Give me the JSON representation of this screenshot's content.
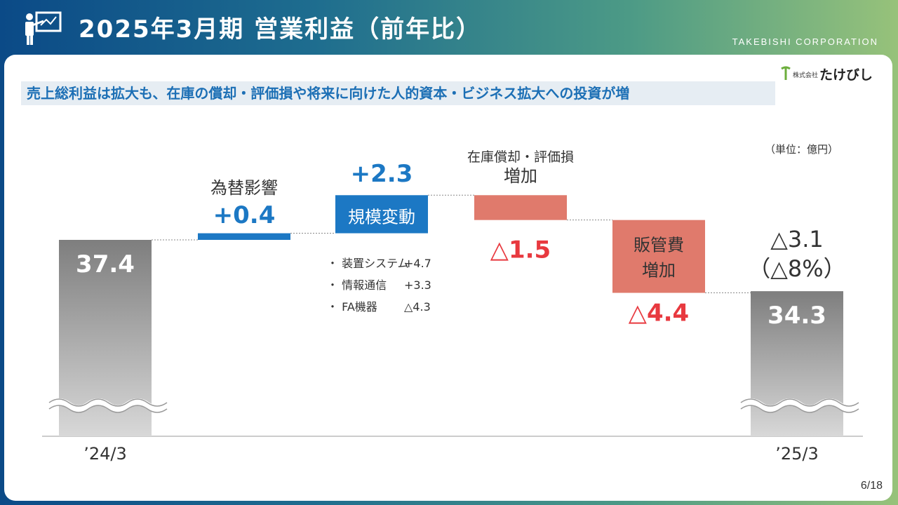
{
  "header": {
    "title": "2025年3月期 営業利益（前年比）",
    "company": "TAKEBISHI CORPORATION"
  },
  "subtitle": "売上総利益は拡大も、在庫の償却・評価損や将来に向けた人的資本・ビジネス拡大への投資が増",
  "logo_text": "株式会社たけびし",
  "unit_label": "（単位：億円）",
  "page_number": "6/18",
  "colors": {
    "positive": "#1c78c4",
    "negative": "#e07a6c",
    "negative_text": "#e8393f",
    "total": "#8a8a8a"
  },
  "chart_data": {
    "type": "bar",
    "subtype": "waterfall",
    "steps": [
      {
        "kind": "total",
        "category": "’24/3",
        "value": 37.4,
        "value_label": "37.4"
      },
      {
        "kind": "delta",
        "category": "為替影響",
        "value": 0.4,
        "value_label": "+0.4"
      },
      {
        "kind": "delta",
        "category": "規模変動",
        "value": 2.3,
        "value_label": "+2.3"
      },
      {
        "kind": "delta",
        "category": "在庫償却・評価損 増加",
        "category_lines": [
          "在庫償却・評価損",
          "増加"
        ],
        "value": -1.5,
        "value_label": "△1.5"
      },
      {
        "kind": "delta",
        "category": "販管費 増加",
        "category_lines": [
          "販管費",
          "増加"
        ],
        "value": -4.4,
        "value_label": "△4.4"
      },
      {
        "kind": "total",
        "category": "’25/3",
        "value": 34.3,
        "value_label": "34.3"
      }
    ],
    "change": {
      "label": "△3.1",
      "percent_label": "（△8%）"
    },
    "breakdown": [
      {
        "label": "・ 装置システム",
        "value": "+4.7"
      },
      {
        "label": "・ 情報通信",
        "value": "+3.3"
      },
      {
        "label": "・ FA機器",
        "value": "△4.3"
      }
    ],
    "axis_break": true,
    "grid": false
  }
}
